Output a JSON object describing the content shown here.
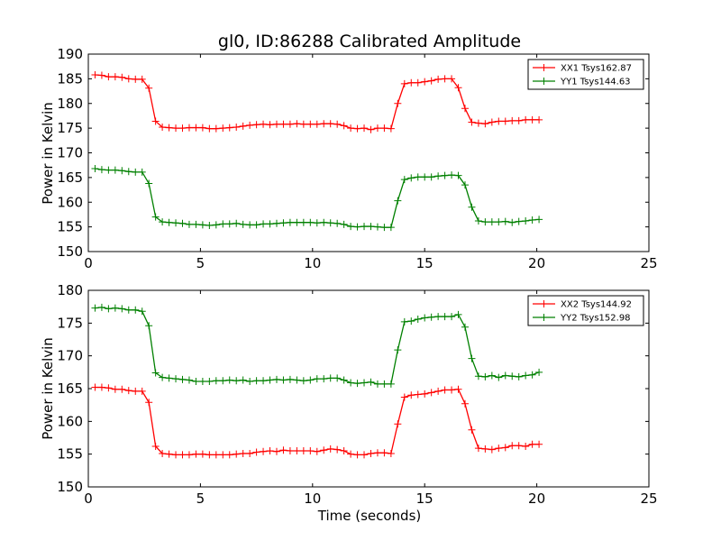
{
  "chart_data": [
    {
      "type": "line",
      "title": "gl0, ID:86288 Calibrated Amplitude",
      "xlabel": "",
      "ylabel": "Power in Kelvin",
      "xlim": [
        0,
        25
      ],
      "ylim": [
        150,
        190
      ],
      "xticks": [
        "0",
        "5",
        "10",
        "15",
        "20",
        "25"
      ],
      "yticks": [
        "150",
        "155",
        "160",
        "165",
        "170",
        "175",
        "180",
        "185",
        "190"
      ],
      "grid": false,
      "legend_position": "top-right",
      "series": [
        {
          "name": "XX1 Tsys162.87",
          "color": "#ff0000",
          "x": [
            0.3,
            0.6,
            0.9,
            1.2,
            1.5,
            1.8,
            2.1,
            2.4,
            2.7,
            3.0,
            3.3,
            3.6,
            3.9,
            4.2,
            4.5,
            4.8,
            5.1,
            5.4,
            5.7,
            6.0,
            6.3,
            6.6,
            6.9,
            7.2,
            7.5,
            7.8,
            8.1,
            8.4,
            8.7,
            9.0,
            9.3,
            9.6,
            9.9,
            10.2,
            10.5,
            10.8,
            11.1,
            11.4,
            11.7,
            12.0,
            12.3,
            12.6,
            12.9,
            13.2,
            13.5,
            13.8,
            14.1,
            14.4,
            14.7,
            15.0,
            15.3,
            15.6,
            15.9,
            16.2,
            16.5,
            16.8,
            17.1,
            17.4,
            17.7,
            18.0,
            18.3,
            18.6,
            18.9,
            19.2,
            19.5,
            19.8,
            20.1
          ],
          "y": [
            185.8,
            185.7,
            185.4,
            185.4,
            185.3,
            185.0,
            184.9,
            184.9,
            183.1,
            176.4,
            175.2,
            175.1,
            175.0,
            175.0,
            175.1,
            175.1,
            175.1,
            174.9,
            174.9,
            175.0,
            175.1,
            175.2,
            175.4,
            175.6,
            175.7,
            175.8,
            175.7,
            175.8,
            175.8,
            175.8,
            175.9,
            175.8,
            175.8,
            175.8,
            175.9,
            175.9,
            175.8,
            175.5,
            175.0,
            174.9,
            175.0,
            174.7,
            175.0,
            175.0,
            174.9,
            180.0,
            184.0,
            184.2,
            184.2,
            184.4,
            184.6,
            184.9,
            185.0,
            185.0,
            183.2,
            179.0,
            176.2,
            176.0,
            175.9,
            176.2,
            176.4,
            176.4,
            176.5,
            176.5,
            176.7,
            176.7,
            176.7
          ]
        },
        {
          "name": "YY1 Tsys144.63",
          "color": "#008000",
          "x": [
            0.3,
            0.6,
            0.9,
            1.2,
            1.5,
            1.8,
            2.1,
            2.4,
            2.7,
            3.0,
            3.3,
            3.6,
            3.9,
            4.2,
            4.5,
            4.8,
            5.1,
            5.4,
            5.7,
            6.0,
            6.3,
            6.6,
            6.9,
            7.2,
            7.5,
            7.8,
            8.1,
            8.4,
            8.7,
            9.0,
            9.3,
            9.6,
            9.9,
            10.2,
            10.5,
            10.8,
            11.1,
            11.4,
            11.7,
            12.0,
            12.3,
            12.6,
            12.9,
            13.2,
            13.5,
            13.8,
            14.1,
            14.4,
            14.7,
            15.0,
            15.3,
            15.6,
            15.9,
            16.2,
            16.5,
            16.8,
            17.1,
            17.4,
            17.7,
            18.0,
            18.3,
            18.6,
            18.9,
            19.2,
            19.5,
            19.8,
            20.1
          ],
          "y": [
            166.8,
            166.6,
            166.5,
            166.5,
            166.4,
            166.2,
            166.1,
            166.1,
            163.8,
            157.0,
            156.0,
            155.9,
            155.8,
            155.7,
            155.5,
            155.5,
            155.4,
            155.3,
            155.4,
            155.6,
            155.6,
            155.7,
            155.5,
            155.4,
            155.4,
            155.6,
            155.6,
            155.7,
            155.8,
            155.9,
            155.9,
            155.9,
            155.9,
            155.8,
            155.9,
            155.8,
            155.7,
            155.5,
            155.1,
            155.0,
            155.1,
            155.1,
            155.0,
            154.9,
            154.9,
            160.3,
            164.6,
            164.9,
            165.1,
            165.1,
            165.1,
            165.3,
            165.4,
            165.5,
            165.4,
            163.5,
            159.0,
            156.2,
            156.0,
            156.0,
            156.0,
            156.1,
            155.9,
            156.1,
            156.2,
            156.4,
            156.5
          ]
        }
      ]
    },
    {
      "type": "line",
      "title": "",
      "xlabel": "Time (seconds)",
      "ylabel": "Power in Kelvin",
      "xlim": [
        0,
        25
      ],
      "ylim": [
        150,
        180
      ],
      "xticks": [
        "0",
        "5",
        "10",
        "15",
        "20",
        "25"
      ],
      "yticks": [
        "150",
        "155",
        "160",
        "165",
        "170",
        "175",
        "180"
      ],
      "grid": false,
      "legend_position": "top-right",
      "series": [
        {
          "name": "XX2 Tsys144.92",
          "color": "#ff0000",
          "x": [
            0.3,
            0.6,
            0.9,
            1.2,
            1.5,
            1.8,
            2.1,
            2.4,
            2.7,
            3.0,
            3.3,
            3.6,
            3.9,
            4.2,
            4.5,
            4.8,
            5.1,
            5.4,
            5.7,
            6.0,
            6.3,
            6.6,
            6.9,
            7.2,
            7.5,
            7.8,
            8.1,
            8.4,
            8.7,
            9.0,
            9.3,
            9.6,
            9.9,
            10.2,
            10.5,
            10.8,
            11.1,
            11.4,
            11.7,
            12.0,
            12.3,
            12.6,
            12.9,
            13.2,
            13.5,
            13.8,
            14.1,
            14.4,
            14.7,
            15.0,
            15.3,
            15.6,
            15.9,
            16.2,
            16.5,
            16.8,
            17.1,
            17.4,
            17.7,
            18.0,
            18.3,
            18.6,
            18.9,
            19.2,
            19.5,
            19.8,
            20.1
          ],
          "y": [
            165.2,
            165.2,
            165.1,
            164.9,
            164.9,
            164.7,
            164.6,
            164.6,
            162.9,
            156.2,
            155.1,
            155.0,
            154.9,
            154.9,
            154.9,
            155.0,
            155.0,
            154.9,
            154.9,
            154.9,
            154.9,
            155.0,
            155.1,
            155.1,
            155.3,
            155.4,
            155.5,
            155.4,
            155.6,
            155.5,
            155.5,
            155.5,
            155.5,
            155.4,
            155.6,
            155.8,
            155.7,
            155.5,
            155.0,
            154.9,
            154.9,
            155.1,
            155.2,
            155.2,
            155.1,
            159.6,
            163.7,
            164.0,
            164.1,
            164.2,
            164.4,
            164.6,
            164.8,
            164.8,
            164.9,
            162.7,
            158.7,
            155.9,
            155.8,
            155.7,
            155.9,
            156.0,
            156.3,
            156.3,
            156.2,
            156.5,
            156.5
          ]
        },
        {
          "name": "YY2 Tsys152.98",
          "color": "#008000",
          "x": [
            0.3,
            0.6,
            0.9,
            1.2,
            1.5,
            1.8,
            2.1,
            2.4,
            2.7,
            3.0,
            3.3,
            3.6,
            3.9,
            4.2,
            4.5,
            4.8,
            5.1,
            5.4,
            5.7,
            6.0,
            6.3,
            6.6,
            6.9,
            7.2,
            7.5,
            7.8,
            8.1,
            8.4,
            8.7,
            9.0,
            9.3,
            9.6,
            9.9,
            10.2,
            10.5,
            10.8,
            11.1,
            11.4,
            11.7,
            12.0,
            12.3,
            12.6,
            12.9,
            13.2,
            13.5,
            13.8,
            14.1,
            14.4,
            14.7,
            15.0,
            15.3,
            15.6,
            15.9,
            16.2,
            16.5,
            16.8,
            17.1,
            17.4,
            17.7,
            18.0,
            18.3,
            18.6,
            18.9,
            19.2,
            19.5,
            19.8,
            20.1
          ],
          "y": [
            177.3,
            177.4,
            177.2,
            177.3,
            177.2,
            177.0,
            177.0,
            176.8,
            174.6,
            167.4,
            166.7,
            166.6,
            166.5,
            166.4,
            166.3,
            166.1,
            166.1,
            166.1,
            166.2,
            166.2,
            166.3,
            166.2,
            166.3,
            166.1,
            166.2,
            166.2,
            166.3,
            166.4,
            166.3,
            166.4,
            166.3,
            166.2,
            166.3,
            166.5,
            166.5,
            166.6,
            166.6,
            166.3,
            165.9,
            165.8,
            165.9,
            166.0,
            165.7,
            165.7,
            165.7,
            170.9,
            175.2,
            175.3,
            175.6,
            175.8,
            175.9,
            176.0,
            176.0,
            176.0,
            176.3,
            174.4,
            169.6,
            166.9,
            166.8,
            167.0,
            166.7,
            167.0,
            166.9,
            166.8,
            167.0,
            167.1,
            167.5
          ]
        }
      ]
    }
  ]
}
